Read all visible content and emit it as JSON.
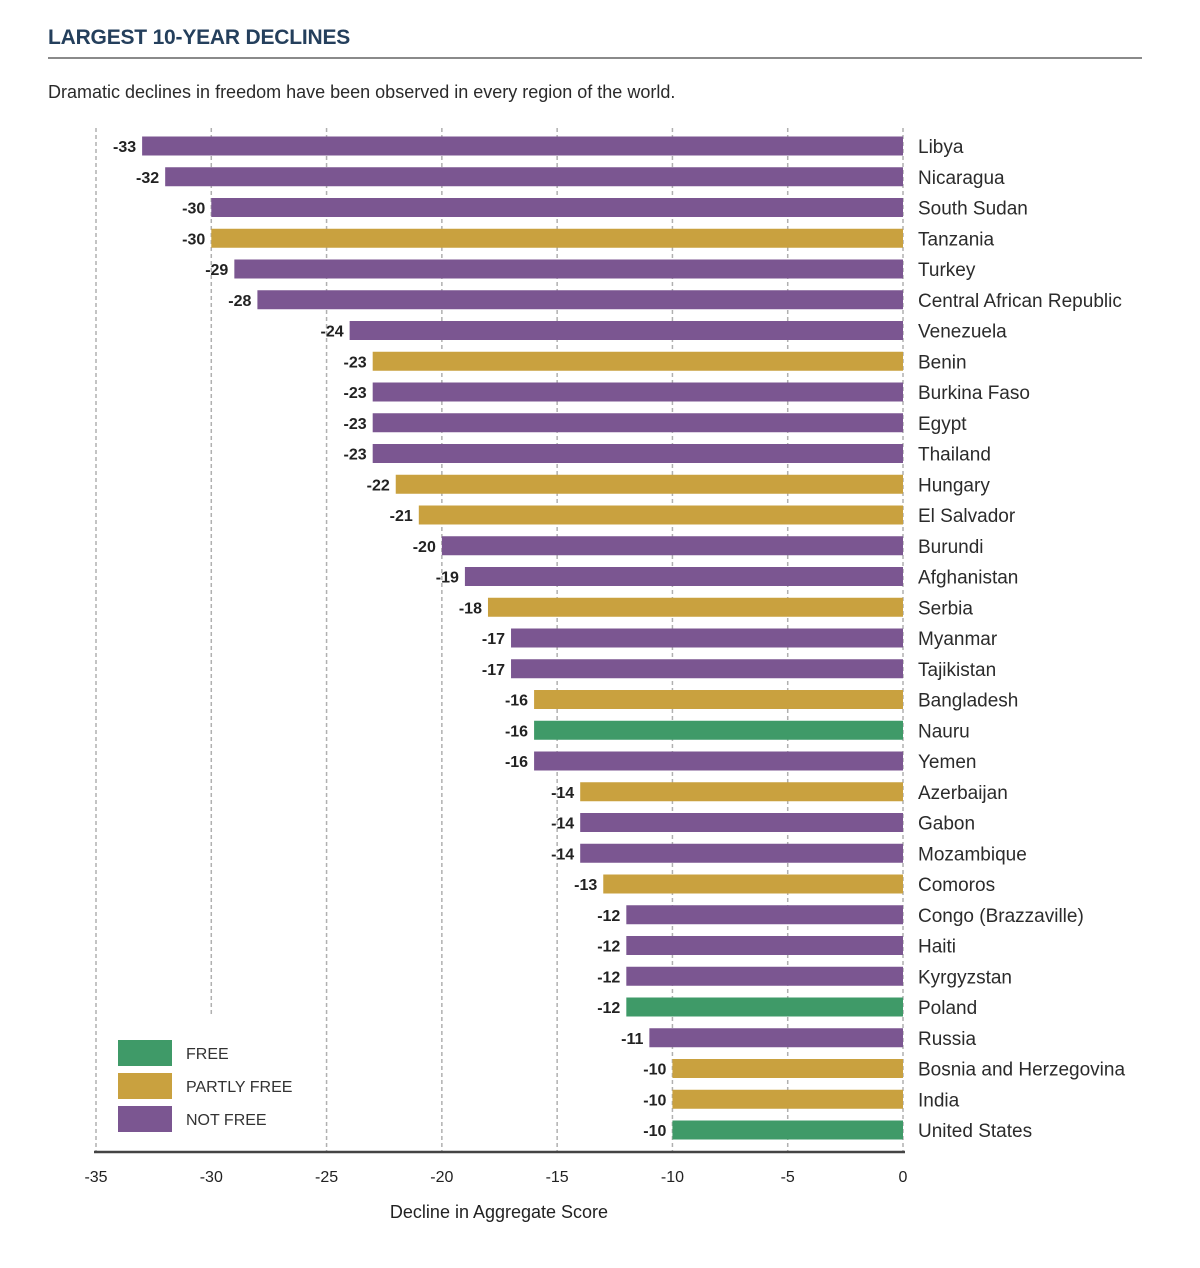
{
  "header": {
    "title": "LARGEST 10-YEAR DECLINES",
    "subtitle": "Dramatic declines in freedom have been observed in every region of the world."
  },
  "chart_data": {
    "type": "bar",
    "orientation": "horizontal",
    "title": "LARGEST 10-YEAR DECLINES",
    "subtitle": "Dramatic declines in freedom have been observed in every region of the world.",
    "xlabel": "Decline in Aggregate Score",
    "ylabel": "",
    "xlim": [
      -35,
      0
    ],
    "xticks": [
      -35,
      -30,
      -25,
      -20,
      -15,
      -10,
      -5,
      0
    ],
    "grid": "vertical dashed",
    "legend_position": "bottom-left",
    "legend": [
      {
        "key": "free",
        "label": "FREE",
        "color": "#3f9a68"
      },
      {
        "key": "partly",
        "label": "PARTLY FREE",
        "color": "#c9a13f"
      },
      {
        "key": "not",
        "label": "NOT FREE",
        "color": "#7b5691"
      }
    ],
    "categories": [
      "Libya",
      "Nicaragua",
      "South Sudan",
      "Tanzania",
      "Turkey",
      "Central African Republic",
      "Venezuela",
      "Benin",
      "Burkina Faso",
      "Egypt",
      "Thailand",
      "Hungary",
      "El Salvador",
      "Burundi",
      "Afghanistan",
      "Serbia",
      "Myanmar",
      "Tajikistan",
      "Bangladesh",
      "Nauru",
      "Yemen",
      "Azerbaijan",
      "Gabon",
      "Mozambique",
      "Comoros",
      "Congo (Brazzaville)",
      "Haiti",
      "Kyrgyzstan",
      "Poland",
      "Russia",
      "Bosnia and Herzegovina",
      "India",
      "United States"
    ],
    "values": [
      -33,
      -32,
      -30,
      -30,
      -29,
      -28,
      -24,
      -23,
      -23,
      -23,
      -23,
      -22,
      -21,
      -20,
      -19,
      -18,
      -17,
      -17,
      -16,
      -16,
      -16,
      -14,
      -14,
      -14,
      -13,
      -12,
      -12,
      -12,
      -12,
      -11,
      -10,
      -10,
      -10
    ],
    "status": [
      "not",
      "not",
      "not",
      "partly",
      "not",
      "not",
      "not",
      "partly",
      "not",
      "not",
      "not",
      "partly",
      "partly",
      "not",
      "not",
      "partly",
      "not",
      "not",
      "partly",
      "free",
      "not",
      "partly",
      "not",
      "not",
      "partly",
      "not",
      "not",
      "not",
      "free",
      "not",
      "partly",
      "partly",
      "free"
    ]
  }
}
